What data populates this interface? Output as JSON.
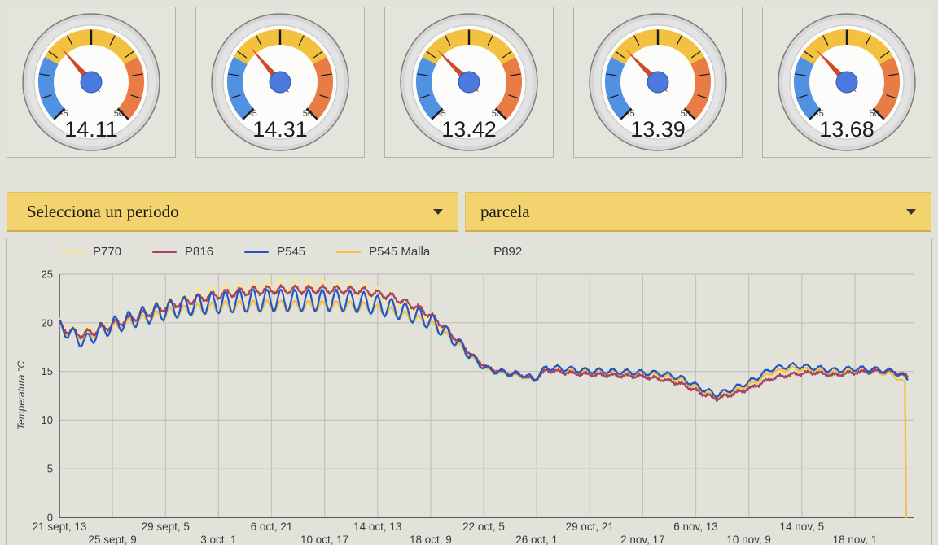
{
  "page": {
    "background": "#e2e2da"
  },
  "gauges": {
    "min": -5,
    "max": 50,
    "min_label": "-5",
    "max_label": "50",
    "band_thresholds": [
      10,
      35
    ],
    "band_colors": {
      "low": "#5191e1",
      "mid": "#f2c140",
      "high": "#e97c45"
    },
    "needle_color": "#cf4a2a",
    "hub_color": "#4b79dd",
    "values": [
      "14.11",
      "14.31",
      "13.42",
      "13.39",
      "13.68"
    ]
  },
  "filters": {
    "period": {
      "label": "Selecciona un periodo"
    },
    "parcel": {
      "label": "parcela"
    }
  },
  "chart_data": {
    "type": "line",
    "title": "",
    "xlabel": "",
    "ylabel": "Temperatura °C",
    "ylim": [
      0,
      25
    ],
    "xlim_days": [
      0,
      61.8
    ],
    "grid": true,
    "legend_position": "top",
    "y_ticks": [
      0,
      5,
      10,
      15,
      20,
      25
    ],
    "x_ticks": [
      {
        "label": "21 sept, 13",
        "day": 0,
        "row": 1
      },
      {
        "label": "25 sept, 9",
        "day": 3.833,
        "row": 2
      },
      {
        "label": "29 sept, 5",
        "day": 7.667,
        "row": 1
      },
      {
        "label": "3 oct, 1",
        "day": 11.5,
        "row": 2
      },
      {
        "label": "6 oct, 21",
        "day": 15.333,
        "row": 1
      },
      {
        "label": "10 oct, 17",
        "day": 19.167,
        "row": 2
      },
      {
        "label": "14 oct, 13",
        "day": 23,
        "row": 1
      },
      {
        "label": "18 oct, 9",
        "day": 26.833,
        "row": 2
      },
      {
        "label": "22 oct, 5",
        "day": 30.667,
        "row": 1
      },
      {
        "label": "26 oct, 1",
        "day": 34.5,
        "row": 2
      },
      {
        "label": "29 oct, 21",
        "day": 38.333,
        "row": 1
      },
      {
        "label": "2 nov, 17",
        "day": 42.167,
        "row": 2
      },
      {
        "label": "6 nov, 13",
        "day": 46,
        "row": 1
      },
      {
        "label": "10 nov, 9",
        "day": 49.833,
        "row": 2
      },
      {
        "label": "14 nov, 5",
        "day": 53.667,
        "row": 1
      },
      {
        "label": "18 nov, 1",
        "day": 57.5,
        "row": 2
      }
    ],
    "draw_order": [
      "P770",
      "P892",
      "P545 Malla",
      "P816",
      "P545"
    ],
    "series": [
      {
        "name": "P770",
        "color": "#f7e795",
        "width": 2.6,
        "phase": 0.25,
        "noise": 0.05,
        "trend": [
          [
            0,
            19.9
          ],
          [
            0.8,
            19.3
          ],
          [
            1.7,
            18.9
          ],
          [
            2.5,
            19.3
          ],
          [
            4,
            20.1
          ],
          [
            6,
            21.0
          ],
          [
            8,
            21.9
          ],
          [
            10,
            22.7
          ],
          [
            12,
            23.3
          ],
          [
            14,
            23.7
          ],
          [
            16,
            23.9
          ],
          [
            18,
            23.8
          ],
          [
            20,
            23.6
          ],
          [
            22,
            23.4
          ],
          [
            24,
            22.6
          ],
          [
            26,
            21.3
          ],
          [
            27,
            20.4
          ],
          [
            27.8,
            19.4
          ],
          [
            29,
            17.8
          ],
          [
            30,
            16.4
          ],
          [
            31,
            15.4
          ],
          [
            32.5,
            14.9
          ],
          [
            33.5,
            14.7
          ],
          [
            34.3,
            14.2
          ],
          [
            35.2,
            15.3
          ],
          [
            36.5,
            15.2
          ],
          [
            38,
            15.0
          ],
          [
            40,
            14.9
          ],
          [
            42,
            14.8
          ],
          [
            43.5,
            14.5
          ],
          [
            45,
            13.9
          ],
          [
            46.5,
            12.9
          ],
          [
            47.5,
            12.4
          ],
          [
            48.5,
            12.8
          ],
          [
            50,
            13.6
          ],
          [
            51.5,
            14.7
          ],
          [
            53,
            15.0
          ],
          [
            54.5,
            15.2
          ],
          [
            56,
            14.9
          ],
          [
            57.5,
            15.1
          ],
          [
            59,
            15.2
          ],
          [
            60.3,
            14.9
          ],
          [
            61.3,
            14.0
          ]
        ],
        "daily_amplitude": [
          [
            0,
            0.5
          ],
          [
            10,
            0.7
          ],
          [
            20,
            0.75
          ],
          [
            26,
            0.55
          ],
          [
            30,
            0.3
          ],
          [
            34,
            0.2
          ],
          [
            61.3,
            0.2
          ]
        ]
      },
      {
        "name": "P816",
        "color": "#a84263",
        "width": 2.2,
        "phase": 0.22,
        "noise": 0.12,
        "trend": [
          [
            0,
            19.7
          ],
          [
            0.8,
            19.1
          ],
          [
            1.7,
            18.8
          ],
          [
            2.5,
            19.1
          ],
          [
            4,
            19.9
          ],
          [
            6,
            20.8
          ],
          [
            8,
            21.8
          ],
          [
            10,
            22.5
          ],
          [
            12,
            23.0
          ],
          [
            14,
            23.3
          ],
          [
            16,
            23.4
          ],
          [
            18,
            23.4
          ],
          [
            20,
            23.4
          ],
          [
            22,
            23.3
          ],
          [
            24,
            22.7
          ],
          [
            26,
            21.5
          ],
          [
            27,
            20.6
          ],
          [
            27.8,
            19.6
          ],
          [
            29,
            17.9
          ],
          [
            30,
            16.4
          ],
          [
            31,
            15.3
          ],
          [
            32.5,
            14.8
          ],
          [
            33.5,
            14.6
          ],
          [
            34.3,
            14.1
          ],
          [
            35.2,
            15.1
          ],
          [
            36.5,
            14.9
          ],
          [
            38,
            14.7
          ],
          [
            40,
            14.6
          ],
          [
            42,
            14.5
          ],
          [
            43.5,
            14.2
          ],
          [
            45,
            13.7
          ],
          [
            46.5,
            12.7
          ],
          [
            47.5,
            12.2
          ],
          [
            48.5,
            12.6
          ],
          [
            50,
            13.3
          ],
          [
            51.5,
            14.3
          ],
          [
            53,
            14.7
          ],
          [
            54.5,
            14.9
          ],
          [
            56,
            14.6
          ],
          [
            57.5,
            14.9
          ],
          [
            59,
            15.0
          ],
          [
            60.3,
            15.0
          ],
          [
            61.3,
            14.5
          ]
        ],
        "daily_amplitude": [
          [
            0,
            0.35
          ],
          [
            14,
            0.4
          ],
          [
            26,
            0.3
          ],
          [
            31,
            0.15
          ],
          [
            61.3,
            0.15
          ]
        ]
      },
      {
        "name": "P545",
        "color": "#2356c5",
        "width": 2.2,
        "phase": 0.25,
        "noise": 0.05,
        "trend": [
          [
            0,
            19.6
          ],
          [
            0.8,
            18.9
          ],
          [
            1.9,
            18.0
          ],
          [
            2.7,
            19.0
          ],
          [
            4,
            19.8
          ],
          [
            6,
            20.7
          ],
          [
            8,
            21.4
          ],
          [
            10,
            21.9
          ],
          [
            12,
            22.1
          ],
          [
            14,
            22.3
          ],
          [
            16,
            22.3
          ],
          [
            18,
            22.3
          ],
          [
            20,
            22.3
          ],
          [
            22,
            22.1
          ],
          [
            24,
            21.5
          ],
          [
            26,
            20.7
          ],
          [
            27,
            20.0
          ],
          [
            27.8,
            19.2
          ],
          [
            29,
            17.7
          ],
          [
            30,
            16.2
          ],
          [
            31,
            15.2
          ],
          [
            32.5,
            14.8
          ],
          [
            33.5,
            14.7
          ],
          [
            34.3,
            14.2
          ],
          [
            35.2,
            15.4
          ],
          [
            36.5,
            15.3
          ],
          [
            38,
            15.1
          ],
          [
            40,
            15.0
          ],
          [
            42,
            14.9
          ],
          [
            43.5,
            14.8
          ],
          [
            45,
            14.3
          ],
          [
            46.5,
            13.2
          ],
          [
            47.5,
            12.6
          ],
          [
            48.5,
            13.1
          ],
          [
            50,
            14.0
          ],
          [
            51.5,
            15.3
          ],
          [
            53,
            15.6
          ],
          [
            54.5,
            15.4
          ],
          [
            56,
            15.1
          ],
          [
            57.5,
            15.3
          ],
          [
            59,
            15.2
          ],
          [
            60.3,
            15.0
          ],
          [
            61.3,
            14.2
          ]
        ],
        "daily_amplitude": [
          [
            0,
            0.7
          ],
          [
            8,
            1.0
          ],
          [
            14,
            1.15
          ],
          [
            22,
            1.05
          ],
          [
            27,
            0.8
          ],
          [
            31,
            0.3
          ],
          [
            40,
            0.25
          ],
          [
            61.3,
            0.25
          ]
        ]
      },
      {
        "name": "P545 Malla",
        "color": "#f5bd4d",
        "width": 2.4,
        "phase": 0.25,
        "noise": 0.05,
        "trend": [
          [
            0,
            19.5
          ],
          [
            0.8,
            19.0
          ],
          [
            1.7,
            18.7
          ],
          [
            2.5,
            19.0
          ],
          [
            4,
            19.5
          ],
          [
            6,
            20.3
          ],
          [
            8,
            21.0
          ],
          [
            10,
            21.4
          ],
          [
            12,
            21.6
          ],
          [
            14,
            21.7
          ],
          [
            16,
            21.7
          ],
          [
            18,
            21.7
          ],
          [
            20,
            21.7
          ],
          [
            22,
            21.6
          ],
          [
            24,
            21.1
          ],
          [
            26,
            20.3
          ],
          [
            27,
            19.7
          ],
          [
            27.8,
            18.9
          ],
          [
            29,
            17.5
          ],
          [
            30,
            16.1
          ],
          [
            31,
            15.1
          ],
          [
            32.5,
            14.7
          ],
          [
            33.5,
            14.5
          ],
          [
            34.3,
            14.1
          ],
          [
            35.2,
            15.2
          ],
          [
            36.5,
            15.0
          ],
          [
            38,
            14.9
          ],
          [
            40,
            14.9
          ],
          [
            42,
            14.8
          ],
          [
            43.5,
            14.6
          ],
          [
            45,
            14.1
          ],
          [
            46.5,
            12.9
          ],
          [
            47.5,
            12.3
          ],
          [
            48.5,
            12.8
          ],
          [
            50,
            13.7
          ],
          [
            51.5,
            14.9
          ],
          [
            53,
            15.3
          ],
          [
            54.5,
            15.1
          ],
          [
            56,
            14.8
          ],
          [
            57.5,
            15.0
          ],
          [
            59,
            15.0
          ],
          [
            60.3,
            14.6
          ],
          [
            61.15,
            13.7
          ],
          [
            61.2,
            0.0
          ]
        ],
        "daily_amplitude": [
          [
            0,
            0.45
          ],
          [
            14,
            0.6
          ],
          [
            26,
            0.45
          ],
          [
            31,
            0.2
          ],
          [
            61.1,
            0.2
          ],
          [
            61.2,
            0.05
          ]
        ]
      },
      {
        "name": "P892",
        "color": "#c9e9da",
        "width": 2.4,
        "phase": 0.23,
        "noise": 0.05,
        "trend": [
          [
            0,
            19.4
          ],
          [
            0.8,
            18.9
          ],
          [
            1.7,
            18.6
          ],
          [
            2.5,
            18.9
          ],
          [
            4,
            19.4
          ],
          [
            6,
            20.1
          ],
          [
            8,
            20.8
          ],
          [
            10,
            21.2
          ],
          [
            12,
            21.5
          ],
          [
            14,
            21.6
          ],
          [
            16,
            21.6
          ],
          [
            18,
            21.6
          ],
          [
            20,
            21.6
          ],
          [
            22,
            21.5
          ],
          [
            24,
            21.0
          ],
          [
            26,
            20.1
          ],
          [
            27,
            19.4
          ],
          [
            27.8,
            18.6
          ],
          [
            29,
            17.2
          ],
          [
            30,
            15.8
          ],
          [
            31,
            14.9
          ],
          [
            32.5,
            14.5
          ],
          [
            33.5,
            14.3
          ],
          [
            34.3,
            13.9
          ],
          [
            35.2,
            14.9
          ],
          [
            36.5,
            14.8
          ],
          [
            38,
            14.6
          ],
          [
            40,
            14.5
          ],
          [
            42,
            14.4
          ],
          [
            43.5,
            14.2
          ],
          [
            45,
            13.7
          ],
          [
            46.5,
            12.6
          ],
          [
            47.5,
            12.1
          ],
          [
            48.5,
            12.5
          ],
          [
            50,
            13.4
          ],
          [
            51.5,
            14.5
          ],
          [
            53,
            14.9
          ],
          [
            54.5,
            14.7
          ],
          [
            56,
            14.4
          ],
          [
            57.5,
            14.7
          ],
          [
            59,
            14.8
          ],
          [
            60.3,
            14.5
          ],
          [
            61.3,
            13.9
          ]
        ],
        "daily_amplitude": [
          [
            0,
            0.45
          ],
          [
            14,
            0.55
          ],
          [
            26,
            0.45
          ],
          [
            31,
            0.2
          ],
          [
            61.3,
            0.2
          ]
        ]
      }
    ],
    "colors": {
      "grid": "#c2c2ba",
      "axis": "#5a5a55",
      "tick_text": "#3a3a3a"
    }
  }
}
